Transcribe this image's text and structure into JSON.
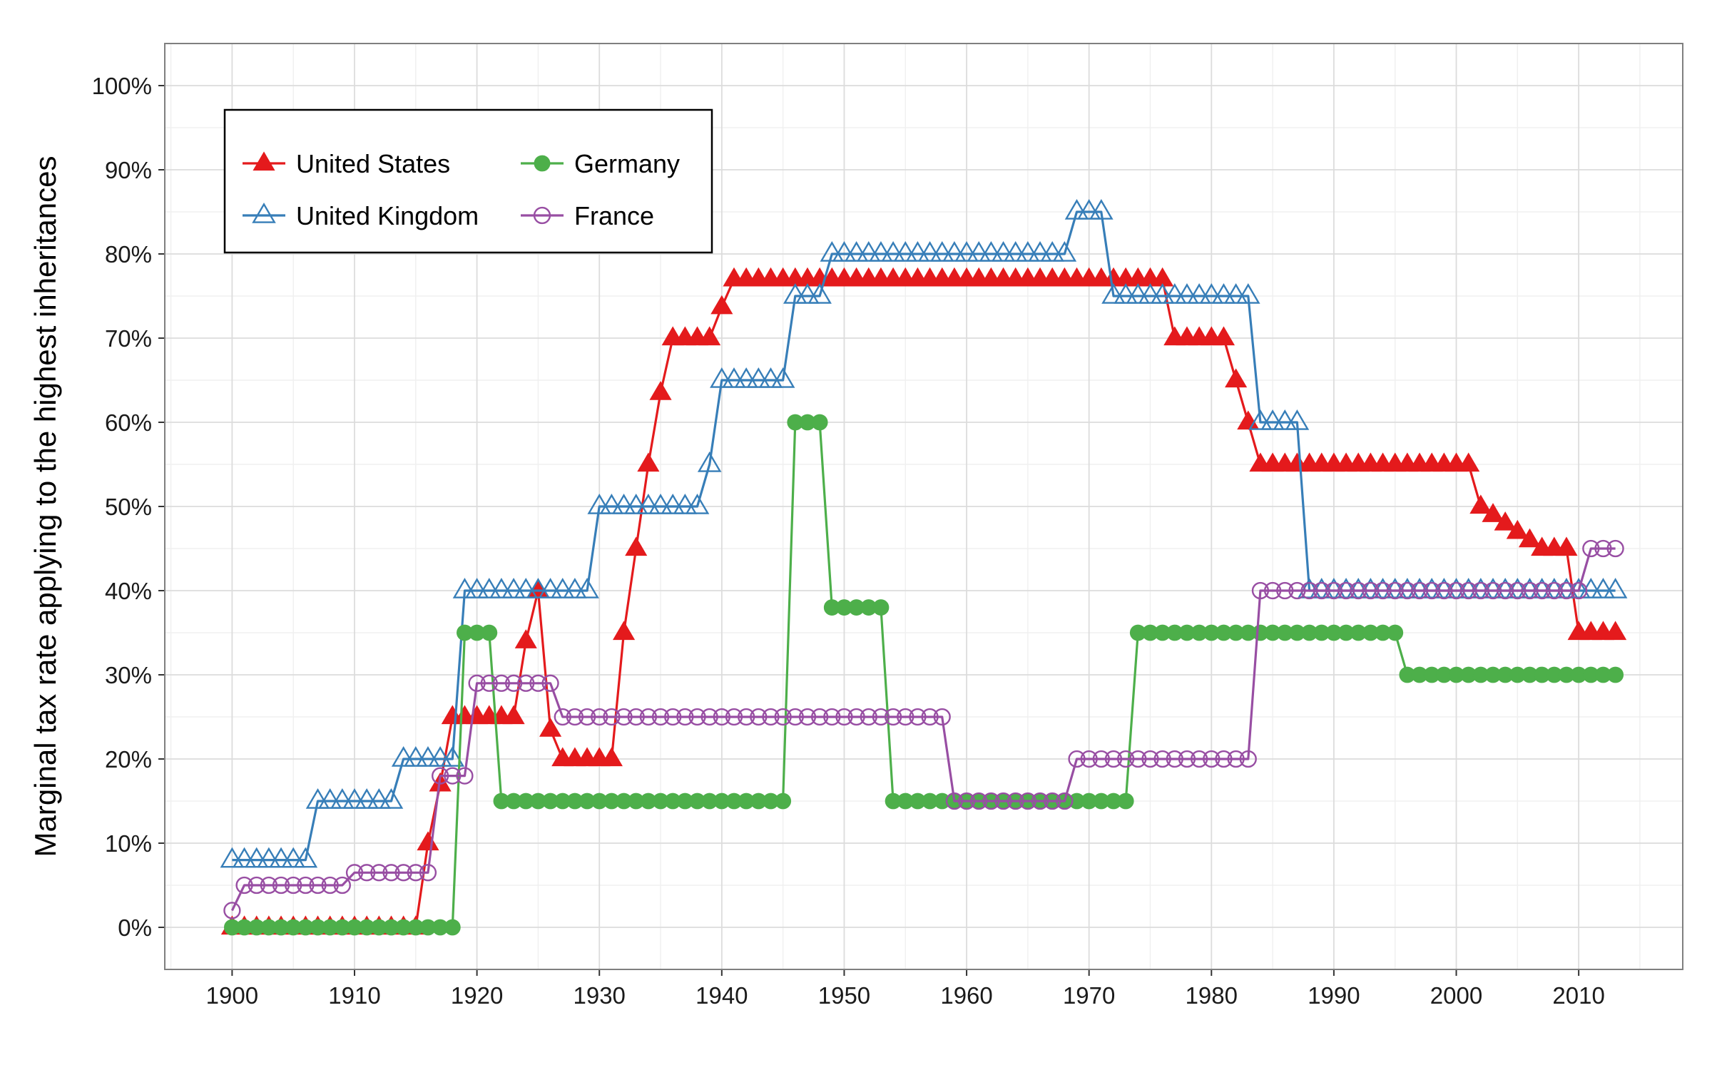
{
  "chart_data": {
    "type": "line",
    "title": "",
    "xlabel": "",
    "ylabel": "Marginal tax rate applying to the highest inheritances",
    "xlim": [
      1894.5,
      2018.5
    ],
    "ylim": [
      -0.05,
      1.05
    ],
    "grid": true,
    "legend_position": "top-left",
    "x_ticks": [
      1900,
      1910,
      1920,
      1930,
      1940,
      1950,
      1960,
      1970,
      1980,
      1990,
      2000,
      2010
    ],
    "y_ticks": [
      0,
      0.1,
      0.2,
      0.3,
      0.4,
      0.5,
      0.6,
      0.7,
      0.8,
      0.9,
      1.0
    ],
    "y_tick_labels": [
      "0%",
      "10%",
      "20%",
      "30%",
      "40%",
      "50%",
      "60%",
      "70%",
      "80%",
      "90%",
      "100%"
    ],
    "x": [
      1900,
      1901,
      1902,
      1903,
      1904,
      1905,
      1906,
      1907,
      1908,
      1909,
      1910,
      1911,
      1912,
      1913,
      1914,
      1915,
      1916,
      1917,
      1918,
      1919,
      1920,
      1921,
      1922,
      1923,
      1924,
      1925,
      1926,
      1927,
      1928,
      1929,
      1930,
      1931,
      1932,
      1933,
      1934,
      1935,
      1936,
      1937,
      1938,
      1939,
      1940,
      1941,
      1942,
      1943,
      1944,
      1945,
      1946,
      1947,
      1948,
      1949,
      1950,
      1951,
      1952,
      1953,
      1954,
      1955,
      1956,
      1957,
      1958,
      1959,
      1960,
      1961,
      1962,
      1963,
      1964,
      1965,
      1966,
      1967,
      1968,
      1969,
      1970,
      1971,
      1972,
      1973,
      1974,
      1975,
      1976,
      1977,
      1978,
      1979,
      1980,
      1981,
      1982,
      1983,
      1984,
      1985,
      1986,
      1987,
      1988,
      1989,
      1990,
      1991,
      1992,
      1993,
      1994,
      1995,
      1996,
      1997,
      1998,
      1999,
      2000,
      2001,
      2002,
      2003,
      2004,
      2005,
      2006,
      2007,
      2008,
      2009,
      2010,
      2011,
      2012,
      2013
    ],
    "series": [
      {
        "name": "United States",
        "color": "#E41A1C",
        "marker": "filled-triangle",
        "values": [
          0,
          0,
          0,
          0,
          0,
          0,
          0,
          0,
          0,
          0,
          0,
          0,
          0,
          0,
          0,
          0,
          0.1,
          0.17,
          0.25,
          0.25,
          0.25,
          0.25,
          0.25,
          0.25,
          0.34,
          0.4,
          0.235,
          0.2,
          0.2,
          0.2,
          0.2,
          0.2,
          0.35,
          0.45,
          0.55,
          0.635,
          0.7,
          0.7,
          0.7,
          0.7,
          0.737,
          0.77,
          0.77,
          0.77,
          0.77,
          0.77,
          0.77,
          0.77,
          0.77,
          0.77,
          0.77,
          0.77,
          0.77,
          0.77,
          0.77,
          0.77,
          0.77,
          0.77,
          0.77,
          0.77,
          0.77,
          0.77,
          0.77,
          0.77,
          0.77,
          0.77,
          0.77,
          0.77,
          0.77,
          0.77,
          0.77,
          0.77,
          0.77,
          0.77,
          0.77,
          0.77,
          0.77,
          0.7,
          0.7,
          0.7,
          0.7,
          0.7,
          0.65,
          0.6,
          0.55,
          0.55,
          0.55,
          0.55,
          0.55,
          0.55,
          0.55,
          0.55,
          0.55,
          0.55,
          0.55,
          0.55,
          0.55,
          0.55,
          0.55,
          0.55,
          0.55,
          0.55,
          0.5,
          0.49,
          0.48,
          0.47,
          0.46,
          0.45,
          0.45,
          0.45,
          0.35,
          0.35,
          0.35,
          0.35
        ]
      },
      {
        "name": "United Kingdom",
        "color": "#377EB8",
        "marker": "open-triangle",
        "values": [
          0.08,
          0.08,
          0.08,
          0.08,
          0.08,
          0.08,
          0.08,
          0.15,
          0.15,
          0.15,
          0.15,
          0.15,
          0.15,
          0.15,
          0.2,
          0.2,
          0.2,
          0.2,
          0.2,
          0.4,
          0.4,
          0.4,
          0.4,
          0.4,
          0.4,
          0.4,
          0.4,
          0.4,
          0.4,
          0.4,
          0.5,
          0.5,
          0.5,
          0.5,
          0.5,
          0.5,
          0.5,
          0.5,
          0.5,
          0.55,
          0.65,
          0.65,
          0.65,
          0.65,
          0.65,
          0.65,
          0.75,
          0.75,
          0.75,
          0.8,
          0.8,
          0.8,
          0.8,
          0.8,
          0.8,
          0.8,
          0.8,
          0.8,
          0.8,
          0.8,
          0.8,
          0.8,
          0.8,
          0.8,
          0.8,
          0.8,
          0.8,
          0.8,
          0.8,
          0.85,
          0.85,
          0.85,
          0.75,
          0.75,
          0.75,
          0.75,
          0.75,
          0.75,
          0.75,
          0.75,
          0.75,
          0.75,
          0.75,
          0.75,
          0.6,
          0.6,
          0.6,
          0.6,
          0.4,
          0.4,
          0.4,
          0.4,
          0.4,
          0.4,
          0.4,
          0.4,
          0.4,
          0.4,
          0.4,
          0.4,
          0.4,
          0.4,
          0.4,
          0.4,
          0.4,
          0.4,
          0.4,
          0.4,
          0.4,
          0.4,
          0.4,
          0.4,
          0.4,
          0.4
        ]
      },
      {
        "name": "Germany",
        "color": "#4DAF4A",
        "marker": "filled-circle",
        "values": [
          0,
          0,
          0,
          0,
          0,
          0,
          0,
          0,
          0,
          0,
          0,
          0,
          0,
          0,
          0,
          0,
          0,
          0,
          0,
          0.35,
          0.35,
          0.35,
          0.15,
          0.15,
          0.15,
          0.15,
          0.15,
          0.15,
          0.15,
          0.15,
          0.15,
          0.15,
          0.15,
          0.15,
          0.15,
          0.15,
          0.15,
          0.15,
          0.15,
          0.15,
          0.15,
          0.15,
          0.15,
          0.15,
          0.15,
          0.15,
          0.6,
          0.6,
          0.6,
          0.38,
          0.38,
          0.38,
          0.38,
          0.38,
          0.15,
          0.15,
          0.15,
          0.15,
          0.15,
          0.15,
          0.15,
          0.15,
          0.15,
          0.15,
          0.15,
          0.15,
          0.15,
          0.15,
          0.15,
          0.15,
          0.15,
          0.15,
          0.15,
          0.15,
          0.35,
          0.35,
          0.35,
          0.35,
          0.35,
          0.35,
          0.35,
          0.35,
          0.35,
          0.35,
          0.35,
          0.35,
          0.35,
          0.35,
          0.35,
          0.35,
          0.35,
          0.35,
          0.35,
          0.35,
          0.35,
          0.35,
          0.3,
          0.3,
          0.3,
          0.3,
          0.3,
          0.3,
          0.3,
          0.3,
          0.3,
          0.3,
          0.3,
          0.3,
          0.3,
          0.3,
          0.3,
          0.3,
          0.3,
          0.3
        ]
      },
      {
        "name": "France",
        "color": "#984EA3",
        "marker": "open-circle",
        "values": [
          0.02,
          0.05,
          0.05,
          0.05,
          0.05,
          0.05,
          0.05,
          0.05,
          0.05,
          0.05,
          0.065,
          0.065,
          0.065,
          0.065,
          0.065,
          0.065,
          0.065,
          0.18,
          0.18,
          0.18,
          0.29,
          0.29,
          0.29,
          0.29,
          0.29,
          0.29,
          0.29,
          0.25,
          0.25,
          0.25,
          0.25,
          0.25,
          0.25,
          0.25,
          0.25,
          0.25,
          0.25,
          0.25,
          0.25,
          0.25,
          0.25,
          0.25,
          0.25,
          0.25,
          0.25,
          0.25,
          0.25,
          0.25,
          0.25,
          0.25,
          0.25,
          0.25,
          0.25,
          0.25,
          0.25,
          0.25,
          0.25,
          0.25,
          0.25,
          0.15,
          0.15,
          0.15,
          0.15,
          0.15,
          0.15,
          0.15,
          0.15,
          0.15,
          0.15,
          0.2,
          0.2,
          0.2,
          0.2,
          0.2,
          0.2,
          0.2,
          0.2,
          0.2,
          0.2,
          0.2,
          0.2,
          0.2,
          0.2,
          0.2,
          0.4,
          0.4,
          0.4,
          0.4,
          0.4,
          0.4,
          0.4,
          0.4,
          0.4,
          0.4,
          0.4,
          0.4,
          0.4,
          0.4,
          0.4,
          0.4,
          0.4,
          0.4,
          0.4,
          0.4,
          0.4,
          0.4,
          0.4,
          0.4,
          0.4,
          0.4,
          0.4,
          0.45,
          0.45,
          0.45
        ]
      }
    ]
  },
  "colors": {
    "panel_border": "#7f7f7f",
    "grid_major": "#dcdcdc",
    "grid_minor": "#f0f0f0",
    "legend_border": "#000000"
  }
}
